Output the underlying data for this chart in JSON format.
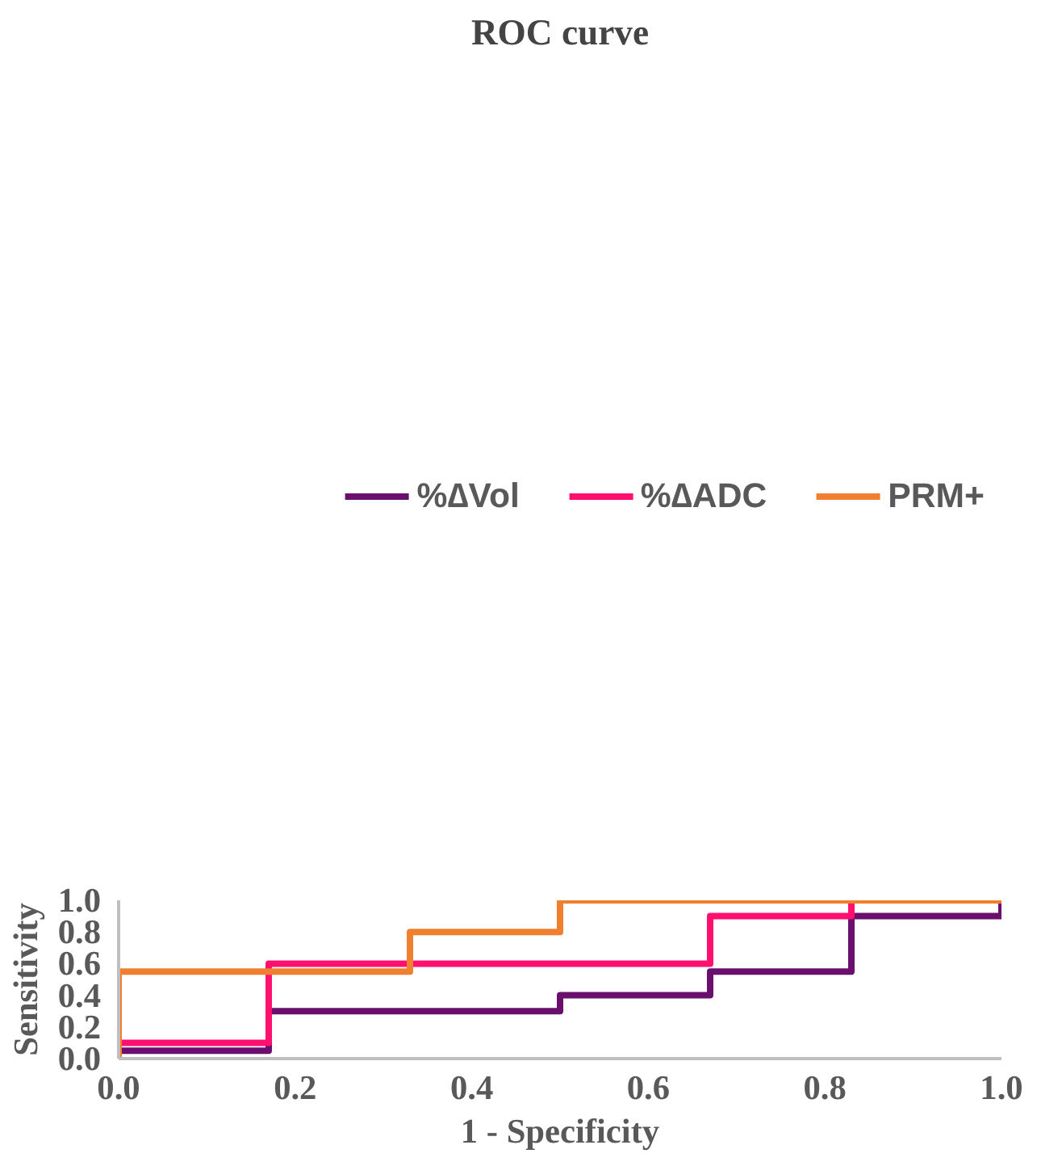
{
  "chart_data": {
    "type": "line",
    "title": "ROC curve",
    "xlabel": "1 - Specificity",
    "ylabel": "Sensitivity",
    "xlim": [
      0,
      1
    ],
    "ylim": [
      0,
      1
    ],
    "xticks": [
      {
        "value": 0,
        "label": "0.0"
      },
      0.2,
      0.4,
      0.6,
      0.8,
      {
        "value": 1,
        "label": "1.0"
      }
    ],
    "yticks": [
      {
        "value": 0,
        "label": "0.0"
      },
      0.2,
      0.4,
      0.6,
      0.8,
      {
        "value": 1,
        "label": "1.0"
      }
    ],
    "grid": false,
    "legend": "top",
    "marker": "none",
    "line_style": "solid",
    "series": [
      {
        "name": "%∆Vol",
        "color": "#6a0f6e",
        "x": [
          0,
          0,
          0.17,
          0.17,
          0.5,
          0.5,
          0.67,
          0.67,
          0.83,
          0.83,
          1,
          1
        ],
        "values": [
          0,
          0.05,
          0.05,
          0.3,
          0.3,
          0.4,
          0.4,
          0.55,
          0.55,
          0.9,
          0.9,
          1
        ]
      },
      {
        "name": "%∆ADC",
        "color": "#ff0f6e",
        "x": [
          0,
          0,
          0.17,
          0.17,
          0.67,
          0.67,
          0.83,
          0.83,
          1
        ],
        "values": [
          0,
          0.1,
          0.1,
          0.6,
          0.6,
          0.9,
          0.9,
          1,
          1
        ]
      },
      {
        "name": "PRM+",
        "color": "#f08030",
        "x": [
          0,
          0,
          0.33,
          0.33,
          0.5,
          0.5,
          1
        ],
        "values": [
          0,
          0.55,
          0.55,
          0.8,
          0.8,
          1,
          1
        ]
      }
    ]
  }
}
